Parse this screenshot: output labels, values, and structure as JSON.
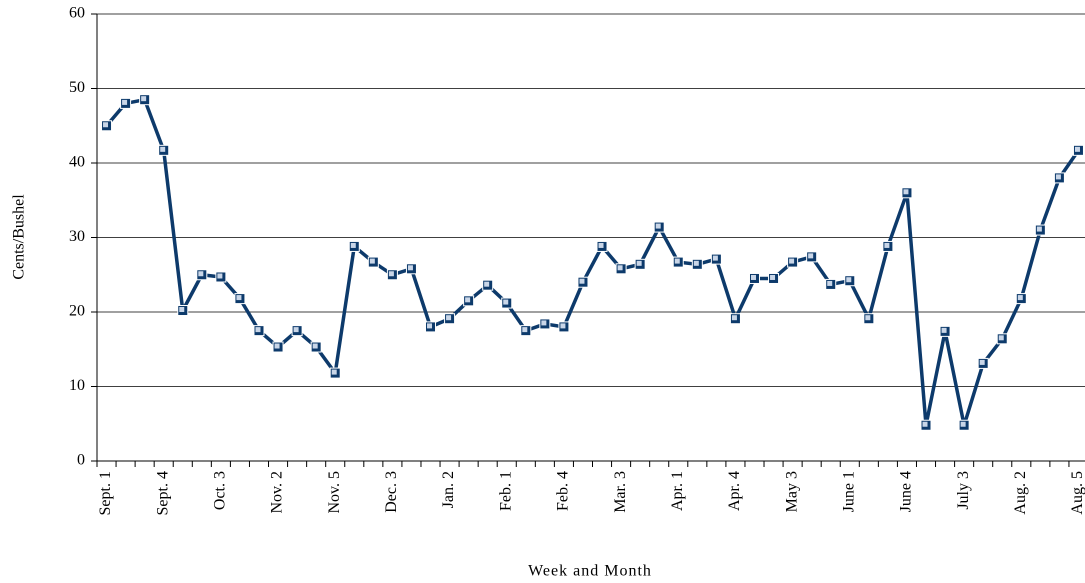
{
  "chart_data": {
    "type": "line",
    "x_label": "Week and Month",
    "y_label": "Cents/Bushel",
    "categories": [
      "Sept. 1",
      null,
      null,
      "Sept. 4",
      null,
      null,
      "Oct. 3",
      null,
      null,
      "Nov. 2",
      null,
      null,
      "Nov. 5",
      null,
      null,
      "Dec. 3",
      null,
      null,
      "Jan. 2",
      null,
      null,
      "Feb. 1",
      null,
      null,
      "Feb. 4",
      null,
      null,
      "Mar. 3",
      null,
      null,
      "Apr. 1",
      null,
      null,
      "Apr. 4",
      null,
      null,
      "May 3",
      null,
      null,
      "June 1",
      null,
      null,
      "June 4",
      null,
      null,
      "July 3",
      null,
      null,
      "Aug. 2",
      null,
      null,
      "Aug. 5"
    ],
    "series": [
      {
        "color": "#0d3a6b",
        "values": [
          45,
          48,
          48.5,
          41.7,
          20.2,
          25,
          24.7,
          21.8,
          17.5,
          15.3,
          17.5,
          15.3,
          11.8,
          28.8,
          26.7,
          25,
          25.8,
          18,
          19.1,
          21.5,
          23.6,
          21.2,
          17.5,
          18.4,
          18,
          24,
          28.8,
          25.8,
          26.4,
          31.4,
          26.7,
          26.4,
          27.1,
          19.1,
          24.5,
          24.5,
          26.7,
          27.4,
          23.7,
          24.2,
          19.1,
          28.8,
          36,
          4.8,
          17.4,
          4.8,
          13.1,
          16.4,
          21.8,
          31,
          38,
          41.7
        ]
      }
    ],
    "ylim": [
      0,
      60
    ],
    "yticks": [
      0,
      10,
      20,
      30,
      40,
      50,
      60
    ],
    "grid": true
  }
}
